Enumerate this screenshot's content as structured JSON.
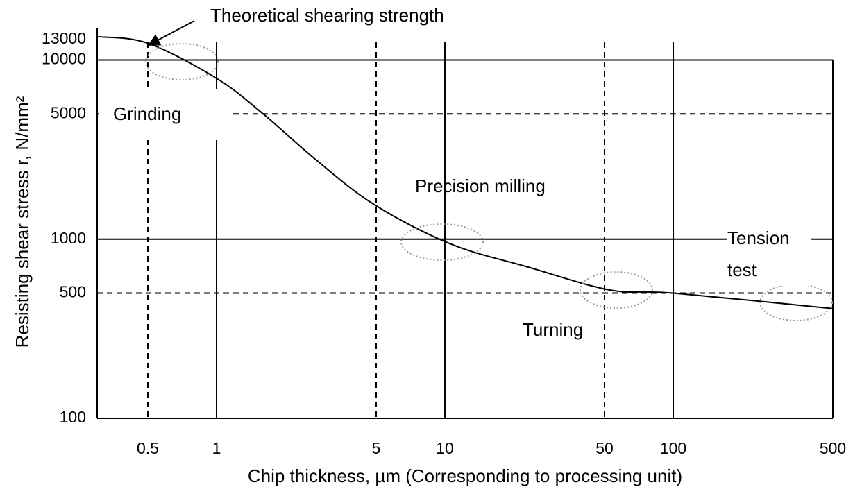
{
  "chart_data": {
    "type": "line",
    "xlabel": "Chip thickness, µm (Corresponding to processing unit)",
    "ylabel": "Resisting shear stress r, N/mm²",
    "annotations": [
      "Theoretical shearing strength",
      "Grinding",
      "Precision milling",
      "Tension test",
      "Turning"
    ],
    "x": [
      0.3,
      0.5,
      1,
      1.6,
      2.7,
      4.9,
      10.6,
      23,
      53,
      100,
      500
    ],
    "series": [
      {
        "name": "Resisting shear stress",
        "color": "#000000",
        "values": [
          13500,
          12400,
          7900,
          5000,
          2800,
          1560,
          940,
          700,
          520,
          500,
          410
        ]
      }
    ],
    "log_x": true,
    "log_y": true,
    "xlim": [
      0.3,
      500
    ],
    "ylim": [
      100,
      15000
    ],
    "xticks": [
      0.5,
      1,
      5,
      10,
      50,
      100,
      500
    ],
    "yticks": [
      100,
      500,
      1000,
      5000,
      10000,
      13000
    ],
    "xgrid": [
      "dashed",
      "solid",
      "dashed",
      "solid",
      "dashed",
      "solid",
      "solid"
    ],
    "ygrid": [
      "solid",
      "dashed",
      "solid",
      "dashed",
      "solid",
      "none"
    ]
  }
}
